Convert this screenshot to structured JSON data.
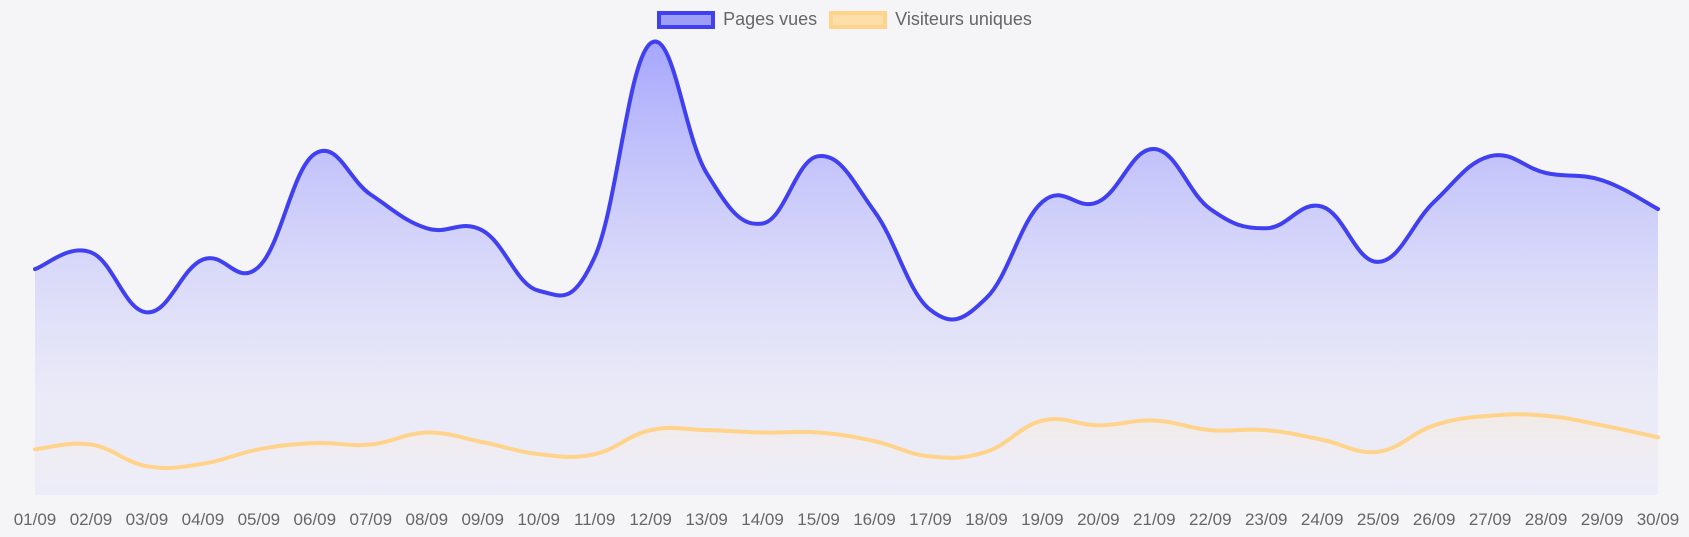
{
  "chart_data": {
    "type": "area",
    "categories": [
      "01/09",
      "02/09",
      "03/09",
      "04/09",
      "05/09",
      "06/09",
      "07/09",
      "08/09",
      "09/09",
      "10/09",
      "11/09",
      "12/09",
      "13/09",
      "14/09",
      "15/09",
      "16/09",
      "17/09",
      "18/09",
      "19/09",
      "20/09",
      "21/09",
      "22/09",
      "23/09",
      "24/09",
      "25/09",
      "26/09",
      "27/09",
      "28/09",
      "29/09",
      "30/09"
    ],
    "series": [
      {
        "name": "Pages vues",
        "color": "#4040f0",
        "fill": "#a0a0ff",
        "values": [
          4700,
          5050,
          3800,
          4900,
          4750,
          7100,
          6250,
          5550,
          5500,
          4250,
          4950,
          9400,
          6700,
          5650,
          7050,
          5900,
          3850,
          4100,
          6100,
          6100,
          7200,
          5950,
          5550,
          6000,
          4850,
          6100,
          7050,
          6700,
          6550,
          5950
        ]
      },
      {
        "name": "Visiteurs uniques",
        "color": "#ffd38a",
        "fill": "#ffe2b0",
        "values": [
          950,
          1050,
          600,
          650,
          950,
          1080,
          1050,
          1300,
          1100,
          850,
          850,
          1350,
          1350,
          1300,
          1300,
          1120,
          800,
          900,
          1550,
          1450,
          1550,
          1350,
          1350,
          1150,
          900,
          1450,
          1650,
          1650,
          1450,
          1200
        ]
      }
    ],
    "legend": "top-center",
    "grid": false,
    "ylim": [
      0,
      10300
    ]
  }
}
